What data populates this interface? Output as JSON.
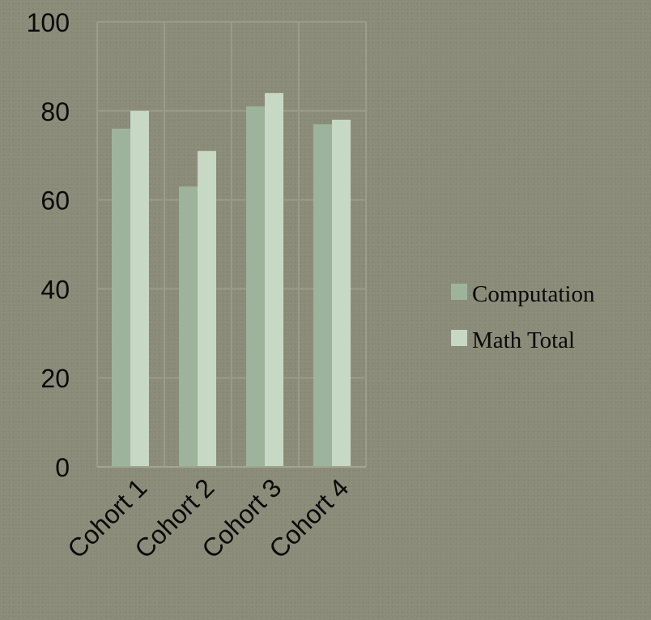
{
  "chart_data": {
    "type": "bar",
    "title": "",
    "xlabel": "",
    "ylabel": "",
    "categories": [
      "Cohort 1",
      "Cohort 2",
      "Cohort 3",
      "Cohort 4"
    ],
    "series": [
      {
        "name": "Computation",
        "values": [
          76,
          63,
          81,
          77
        ],
        "color": "#9db39c"
      },
      {
        "name": "Math Total",
        "values": [
          80,
          71,
          84,
          78
        ],
        "color": "#c7d8c5"
      }
    ],
    "ylim": [
      0,
      100
    ],
    "yticks": [
      0,
      20,
      40,
      60,
      80,
      100
    ],
    "grid": true,
    "legend_position": "right"
  },
  "colors": {
    "background": "#8a8b78",
    "text": "#0a0a0a"
  }
}
